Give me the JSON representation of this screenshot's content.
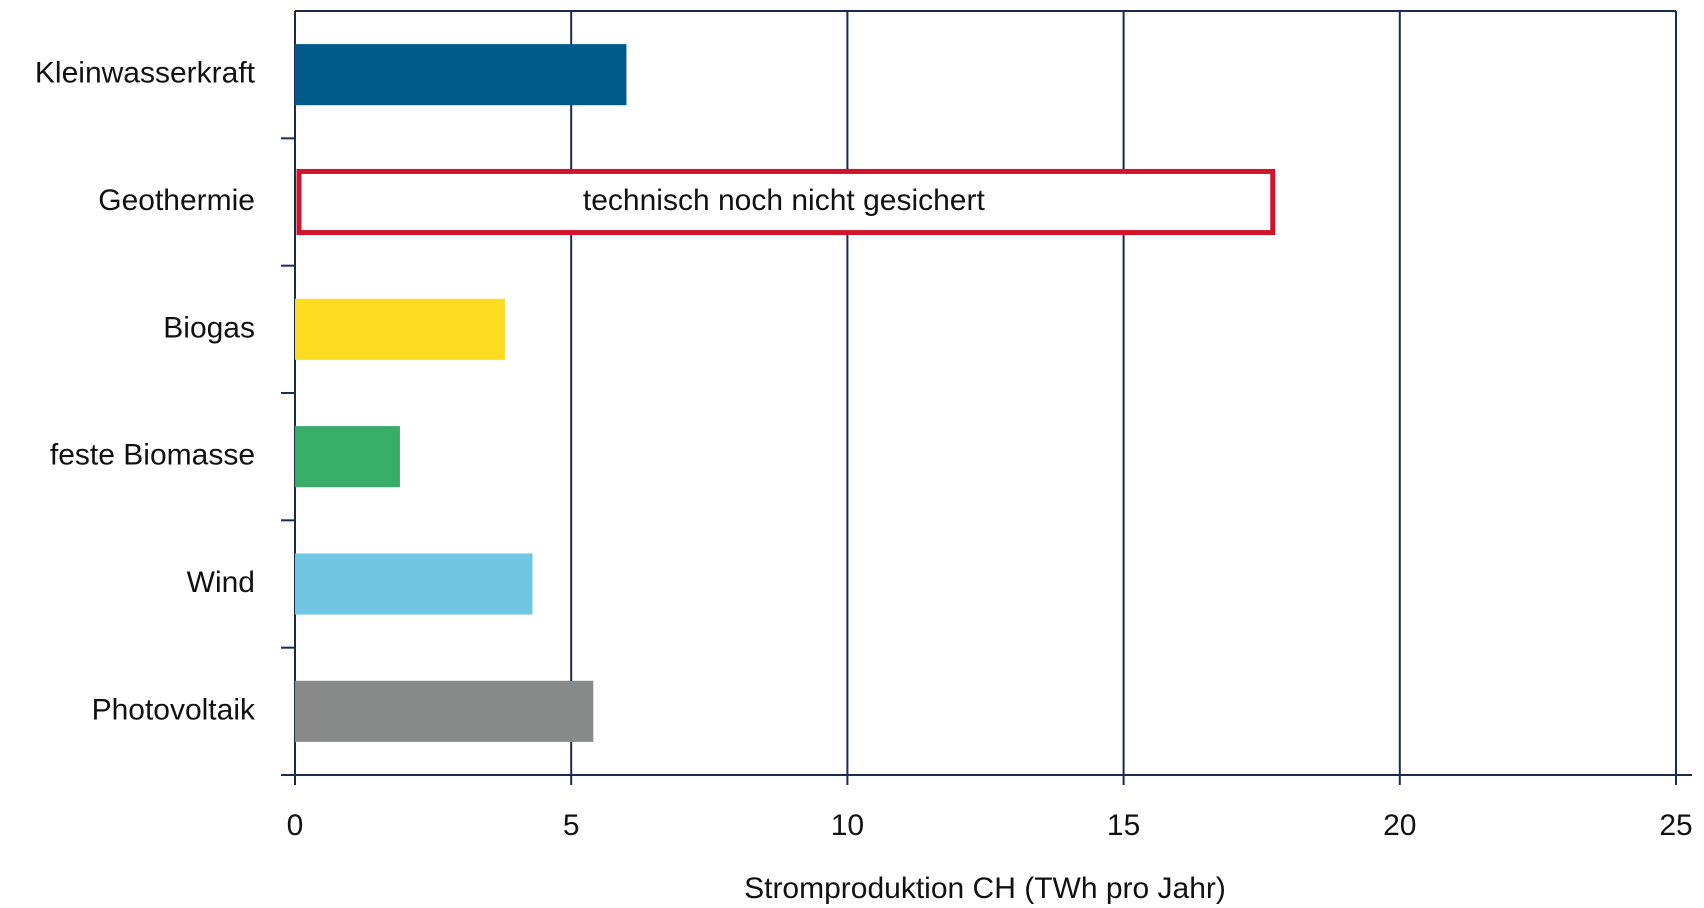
{
  "chart_data": {
    "type": "hbar",
    "x_label": "Stromproduktion CH (TWh pro Jahr)",
    "categories": [
      "Kleinwasserkraft",
      "Geothermie",
      "Biogas",
      "feste Biomasse",
      "Wind",
      "Photovoltaik"
    ],
    "values": [
      6,
      null,
      3.8,
      1.9,
      4.3,
      5.4
    ],
    "colors": [
      "#005b8a",
      null,
      "#fddc1f",
      "#37ad68",
      "#71c7e3",
      "#878a88"
    ],
    "annotation": {
      "text": "technisch noch nicht gesichert",
      "category": "Geothermie",
      "start": 0,
      "end": 17.7,
      "color": "#d0142c"
    },
    "xlim": [
      0,
      25
    ],
    "xticks": [
      0,
      5,
      10,
      15,
      20,
      25
    ],
    "grid": true,
    "grid_color": "#1c2b4a"
  }
}
